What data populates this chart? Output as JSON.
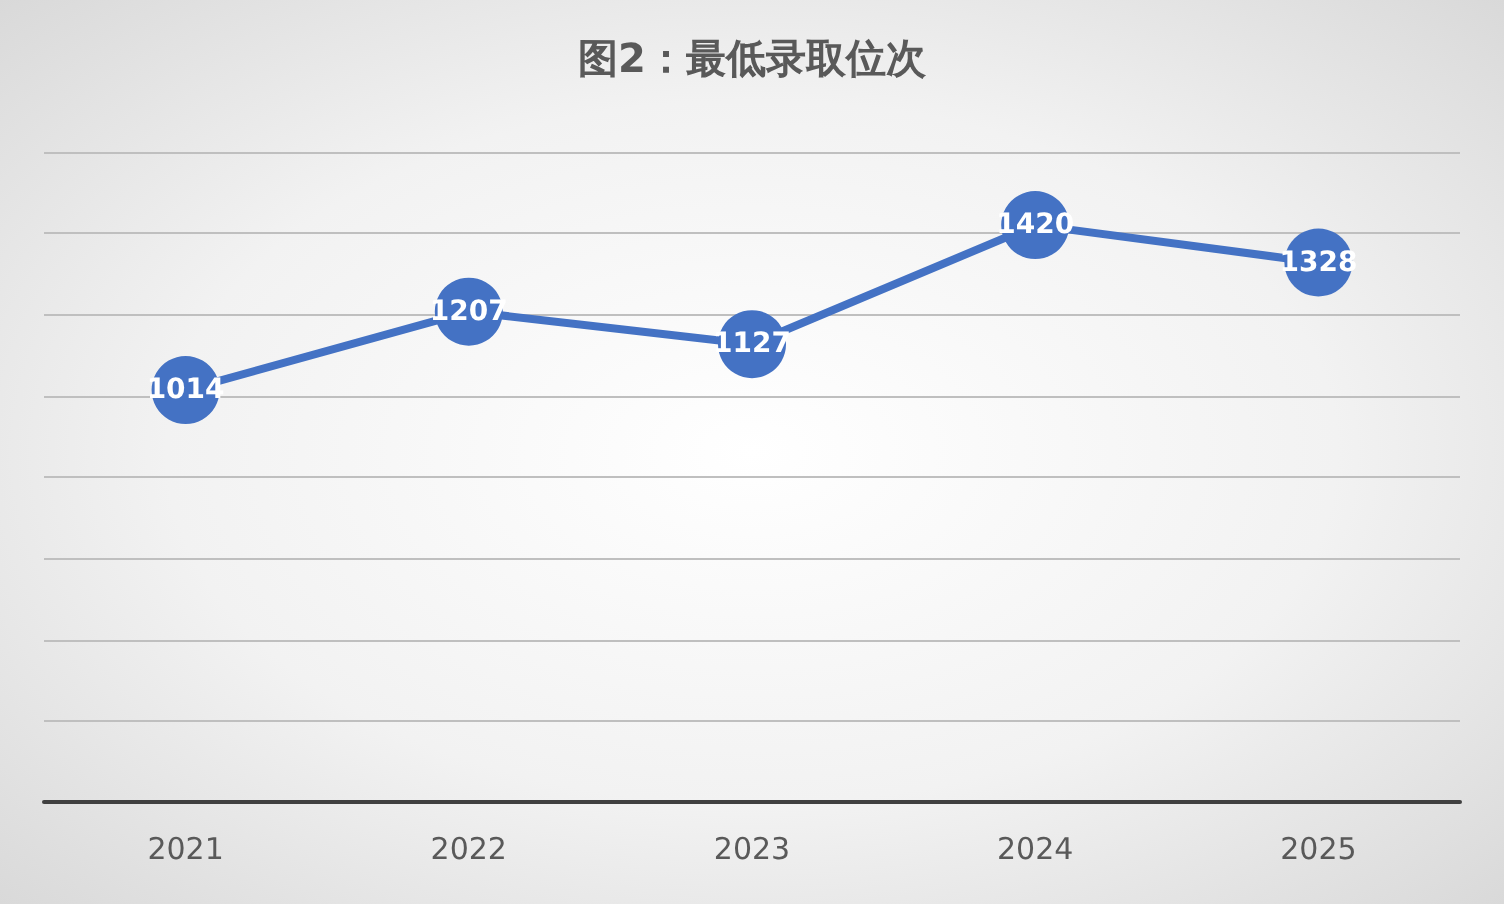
{
  "chart_data": {
    "type": "line",
    "title": "图2：最低录取位次",
    "categories": [
      "2021",
      "2022",
      "2023",
      "2024",
      "2025"
    ],
    "series": [
      {
        "color": "#4472c4",
        "values": [
          1014,
          1207,
          1127,
          1420,
          1328
        ]
      }
    ],
    "ylim": [
      0,
      1600
    ],
    "yticks": [
      {
        "value": 0,
        "label": null
      },
      {
        "value": 200,
        "label": null
      },
      {
        "value": 400,
        "label": null
      },
      {
        "value": 600,
        "label": null
      },
      {
        "value": 800,
        "label": null
      },
      {
        "value": 1000,
        "label": null
      },
      {
        "value": 1200,
        "label": null
      },
      {
        "value": 1400,
        "label": null
      },
      {
        "value": 1600,
        "label": null
      }
    ],
    "tick_labels": "x",
    "grid": "y",
    "data_labels": true,
    "marker": "circle",
    "line_style": "solid"
  }
}
